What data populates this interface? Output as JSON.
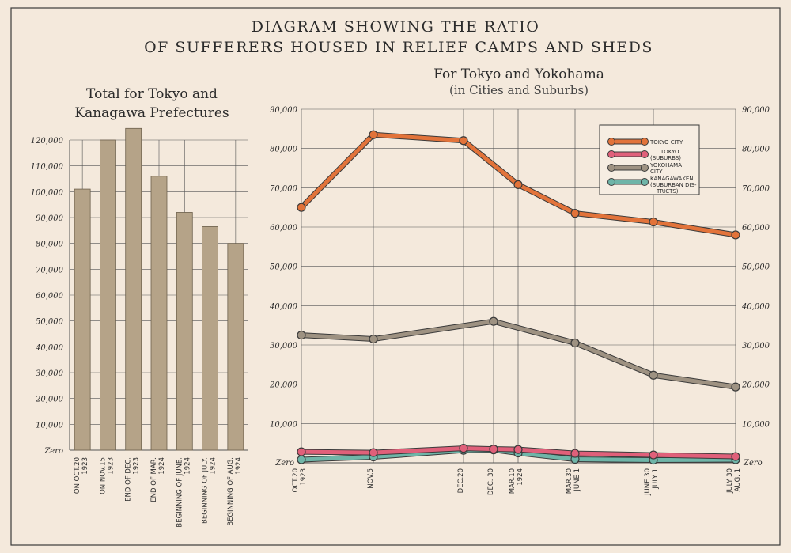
{
  "header": {
    "title_line1": "DIAGRAM SHOWING THE RATIO",
    "title_line2": "OF SUFFERERS HOUSED IN RELIEF CAMPS AND SHEDS"
  },
  "colors": {
    "background": "#f4e9dc",
    "bar": "#b5a388",
    "tokyo_city": "#e2733a",
    "tokyo_suburbs": "#e0607a",
    "yokohama_city": "#9e9282",
    "kanagawaken": "#6fb5a8"
  },
  "chart_data": [
    {
      "type": "bar",
      "title_line1": "Total for Tokyo and",
      "title_line2": "Kanagawa Prefectures",
      "zero_label": "Zero",
      "ylim": [
        0,
        120000
      ],
      "yticks": [
        "10,000",
        "20,000",
        "30,000",
        "40,000",
        "50,000",
        "60,000",
        "70,000",
        "80,000",
        "90,000",
        "100,000",
        "110,000",
        "120,000"
      ],
      "categories": [
        [
          "ON OCT.20",
          "1923"
        ],
        [
          "ON NOV.15",
          "1923"
        ],
        [
          "END OF DEC.",
          "1923"
        ],
        [
          "END OF MAR.",
          "1924"
        ],
        [
          "BEGINNING OF JUNE.",
          "1924"
        ],
        [
          "BEGINNING OF JULY.",
          "1924"
        ],
        [
          "BEGINNING OF AUG.",
          "1924"
        ]
      ],
      "values": [
        101000,
        120000,
        124500,
        106000,
        92000,
        86500,
        80000
      ]
    },
    {
      "type": "line",
      "title": "For Tokyo and Yokohama",
      "subtitle": "(in Cities and Suburbs)",
      "zero_label": "Zero",
      "ylim": [
        0,
        90000
      ],
      "yticks": [
        "10,000",
        "20,000",
        "30,000",
        "40,000",
        "50,000",
        "60,000",
        "70,000",
        "80,000",
        "90,000"
      ],
      "x_labels": [
        [
          "OCT.20",
          "1923"
        ],
        [
          "NOV.5"
        ],
        [
          "DEC.20"
        ],
        [
          "DEC. 30"
        ],
        [
          "MAR.10",
          "1924"
        ],
        [
          "MAR.30",
          "JUNE 1"
        ],
        [
          "JUNE 30",
          "JULY 1"
        ],
        [
          "JULY 30",
          "AUG. 1"
        ]
      ],
      "series": [
        {
          "name": "TOKYO CITY",
          "points": [
            [
              0,
              65000
            ],
            [
              1,
              83500
            ],
            [
              2,
              82000
            ],
            [
              4,
              70800
            ],
            [
              5,
              63500
            ],
            [
              6,
              61300
            ],
            [
              7,
              58000
            ]
          ]
        },
        {
          "name_line1": "TOKYO",
          "name_line2": "(SUBURBS)",
          "points": [
            [
              0,
              2800
            ],
            [
              1,
              2600
            ],
            [
              2,
              3700
            ],
            [
              3,
              3500
            ],
            [
              4,
              3400
            ],
            [
              5,
              2400
            ],
            [
              6,
              2000
            ],
            [
              7,
              1600
            ]
          ]
        },
        {
          "name_line1": "YOKOHAMA",
          "name_line2": "CITY",
          "points": [
            [
              0,
              32500
            ],
            [
              1,
              31500
            ],
            [
              3,
              36000
            ],
            [
              5,
              30500
            ],
            [
              6,
              22300
            ],
            [
              7,
              19300
            ]
          ]
        },
        {
          "name_line1": "KANAGAWAKEN",
          "name_line2": "(SUBURBAN DIS-",
          "name_line3": "TRICTS)",
          "points": [
            [
              0,
              800
            ],
            [
              1,
              1500
            ],
            [
              2,
              3200
            ],
            [
              3,
              3300
            ],
            [
              4,
              2500
            ],
            [
              5,
              900
            ],
            [
              6,
              700
            ],
            [
              7,
              800
            ]
          ]
        }
      ]
    }
  ]
}
